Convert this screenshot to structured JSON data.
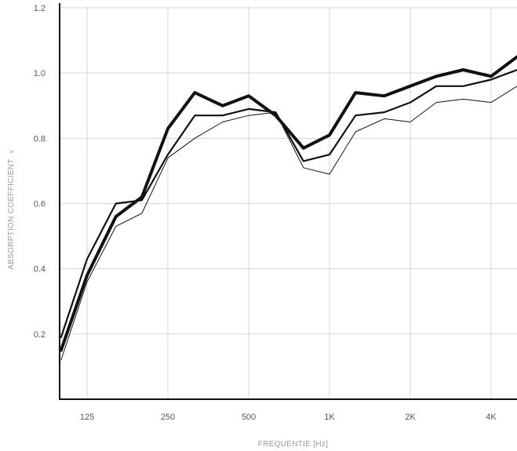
{
  "chart_data": {
    "type": "line",
    "title": "",
    "xlabel": "FREQUENTIE [Hz]",
    "ylabel": "ABSORPTION COEFFICIENT",
    "ylabel_subscript": "s",
    "x_scale": "log",
    "xlim": [
      100,
      5000
    ],
    "ylim": [
      0,
      1.2
    ],
    "grid": true,
    "x_ticks": [
      {
        "value": 125,
        "label": "125"
      },
      {
        "value": 250,
        "label": "250"
      },
      {
        "value": 500,
        "label": "500"
      },
      {
        "value": 1000,
        "label": "1K"
      },
      {
        "value": 2000,
        "label": "2K"
      },
      {
        "value": 4000,
        "label": "4K"
      }
    ],
    "y_ticks": [
      {
        "value": 0.2,
        "label": "0.2"
      },
      {
        "value": 0.4,
        "label": "0.4"
      },
      {
        "value": 0.6,
        "label": "0.6"
      },
      {
        "value": 0.8,
        "label": "0.8"
      },
      {
        "value": 1.0,
        "label": "1.0"
      },
      {
        "value": 1.2,
        "label": "1.2"
      }
    ],
    "x": [
      100,
      125,
      160,
      200,
      250,
      315,
      400,
      500,
      630,
      800,
      1000,
      1250,
      1600,
      2000,
      2500,
      3150,
      4000,
      5000
    ],
    "series": [
      {
        "weight": "thick",
        "color": "#111111",
        "values": [
          0.15,
          0.38,
          0.56,
          0.62,
          0.83,
          0.94,
          0.9,
          0.93,
          0.87,
          0.77,
          0.81,
          0.94,
          0.93,
          0.96,
          0.99,
          1.01,
          0.99,
          1.05
        ]
      },
      {
        "weight": "medium",
        "color": "#111111",
        "values": [
          0.19,
          0.43,
          0.6,
          0.61,
          0.75,
          0.87,
          0.87,
          0.89,
          0.88,
          0.73,
          0.75,
          0.87,
          0.88,
          0.91,
          0.96,
          0.96,
          0.98,
          1.01
        ]
      },
      {
        "weight": "thin",
        "color": "#111111",
        "values": [
          0.12,
          0.36,
          0.53,
          0.57,
          0.74,
          0.8,
          0.85,
          0.87,
          0.88,
          0.71,
          0.69,
          0.82,
          0.86,
          0.85,
          0.91,
          0.92,
          0.91,
          0.96
        ]
      }
    ]
  }
}
